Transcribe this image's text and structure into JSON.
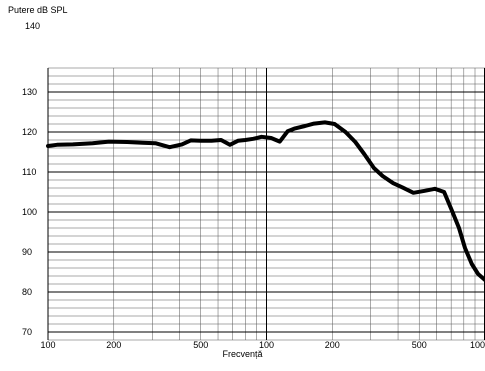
{
  "chart_data": {
    "type": "line",
    "ylabel": "Putere dB SPL",
    "xlabel": "Frecvență",
    "x_scale": "log",
    "y_top_label": "140",
    "yticks": [
      130,
      120,
      110,
      100,
      90,
      80,
      70
    ],
    "xtick_labels": [
      "100",
      "200",
      "500",
      "100",
      "200",
      "500",
      "100"
    ],
    "grid": true,
    "series": [
      {
        "values_note": "",
        "x": [
          100,
          110,
          130,
          160,
          190,
          230,
          270,
          310,
          360,
          410,
          450,
          500,
          560,
          620,
          680,
          740,
          800,
          870,
          950,
          1050,
          1150,
          1250,
          1350,
          1500,
          1650,
          1850,
          2050,
          2300,
          2550,
          2800,
          3100,
          3400,
          3800,
          4200,
          4700,
          5300,
          5900,
          6500,
          7100,
          7600,
          8100,
          8700,
          9300,
          10000
        ],
        "y": [
          116.5,
          116.8,
          116.9,
          117.2,
          117.6,
          117.5,
          117.3,
          117.2,
          116.2,
          116.9,
          117.9,
          117.8,
          117.8,
          118.0,
          116.8,
          117.8,
          118.0,
          118.3,
          118.8,
          118.5,
          117.6,
          120.2,
          120.9,
          121.5,
          122.1,
          122.4,
          122.0,
          120.0,
          117.5,
          114.5,
          111.0,
          109.0,
          107.2,
          106.1,
          104.8,
          105.3,
          105.8,
          105.0,
          100.0,
          96.0,
          91.0,
          87.0,
          84.5,
          83.0
        ]
      }
    ]
  }
}
